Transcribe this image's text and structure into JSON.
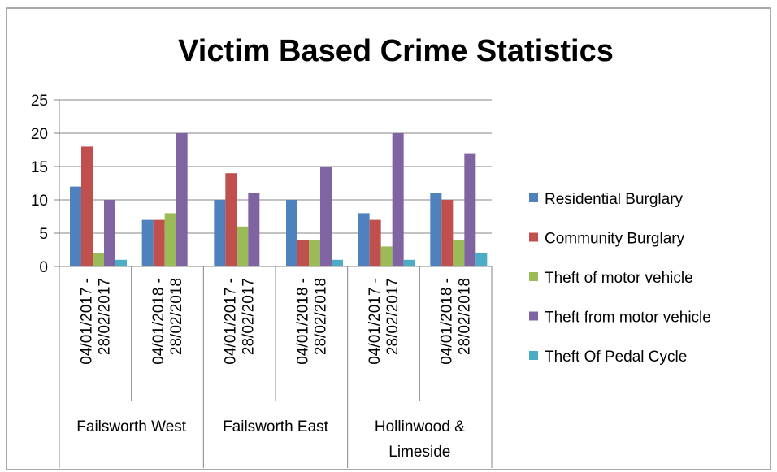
{
  "chart_data": {
    "type": "bar",
    "title": "Victim Based Crime Statistics",
    "xlabel": "",
    "ylabel": "",
    "ylim": [
      0,
      25
    ],
    "yticks": [
      0,
      5,
      10,
      15,
      20,
      25
    ],
    "grid": true,
    "legend_position": "right",
    "categories": [
      {
        "label_line1": "04/01/2017 -",
        "label_line2": "28/02/2017",
        "group": "Failsworth West"
      },
      {
        "label_line1": "04/01/2018 -",
        "label_line2": "28/02/2018",
        "group": "Failsworth West"
      },
      {
        "label_line1": "04/01/2017 -",
        "label_line2": "28/02/2017",
        "group": "Failsworth East"
      },
      {
        "label_line1": "04/01/2018 -",
        "label_line2": "28/02/2018",
        "group": "Failsworth East"
      },
      {
        "label_line1": "04/01/2017 -",
        "label_line2": "28/02/2017",
        "group": "Hollinwood & Limeside"
      },
      {
        "label_line1": "04/01/2018 -",
        "label_line2": "28/02/2018",
        "group": "Hollinwood & Limeside"
      }
    ],
    "groups": [
      {
        "lines": [
          "Failsworth West"
        ]
      },
      {
        "lines": [
          "Failsworth East"
        ]
      },
      {
        "lines": [
          "Hollinwood &",
          "Limeside"
        ]
      }
    ],
    "series": [
      {
        "name": "Residential Burglary",
        "color": "#4F81BD",
        "values": [
          12,
          7,
          10,
          10,
          8,
          11
        ]
      },
      {
        "name": "Community Burglary",
        "color": "#C0504D",
        "values": [
          18,
          7,
          14,
          4,
          7,
          10
        ]
      },
      {
        "name": "Theft of motor vehicle",
        "color": "#9BBB59",
        "values": [
          2,
          8,
          6,
          4,
          3,
          4
        ]
      },
      {
        "name": "Theft from motor vehicle",
        "color": "#8064A2",
        "values": [
          10,
          20,
          11,
          15,
          20,
          17
        ]
      },
      {
        "name": "Theft Of Pedal Cycle",
        "color": "#4BACC6",
        "values": [
          1,
          0,
          0,
          1,
          1,
          2
        ]
      }
    ]
  }
}
